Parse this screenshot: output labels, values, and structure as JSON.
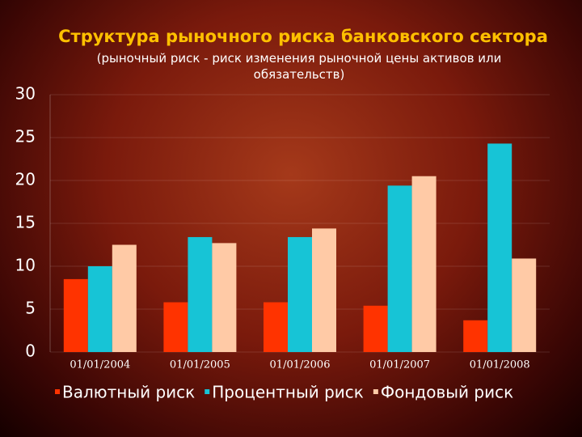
{
  "chart_data": {
    "type": "bar",
    "title": "Структура рыночного риска банковского сектора",
    "subtitle": "(рыночный риск - риск изменения рыночной цены активов или обязательств)",
    "categories": [
      "01/01/2004",
      "01/01/2005",
      "01/01/2006",
      "01/01/2007",
      "01/01/2008"
    ],
    "series": [
      {
        "name": "Валютный риск",
        "color": "#ff3300",
        "values": [
          8.5,
          5.8,
          5.8,
          5.4,
          3.7
        ]
      },
      {
        "name": "Процентный риск",
        "color": "#17c4d6",
        "values": [
          10.0,
          13.4,
          13.4,
          19.4,
          24.3
        ]
      },
      {
        "name": "Фондовый риск",
        "color": "#ffcaa6",
        "values": [
          12.5,
          12.7,
          14.4,
          20.5,
          10.9
        ]
      }
    ],
    "ylim": [
      0,
      30
    ],
    "yticks": [
      0,
      5,
      10,
      15,
      20,
      25,
      30
    ],
    "legend": "bottom"
  }
}
